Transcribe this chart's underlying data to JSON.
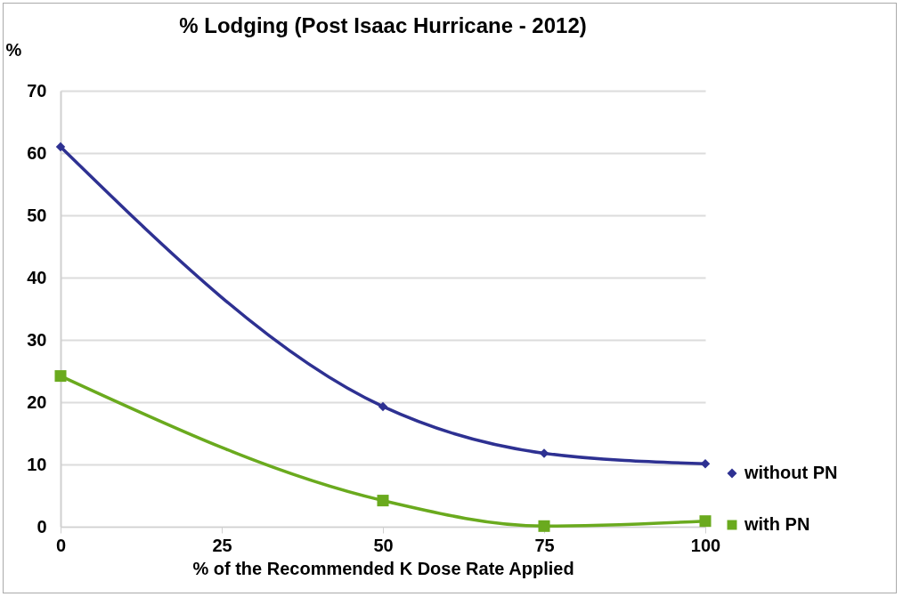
{
  "chart_data": {
    "type": "line",
    "title": "% Lodging (Post Isaac Hurricane - 2012)",
    "xlabel": "% of the Recommended K Dose Rate Applied",
    "ylabel": "%",
    "x": [
      0,
      50,
      75,
      100
    ],
    "series": [
      {
        "name": "without PN",
        "color": "#2e3192",
        "marker": "diamond",
        "values": [
          61,
          19.3,
          11.8,
          10.1
        ]
      },
      {
        "name": "with PN",
        "color": "#6aaa1e",
        "marker": "square",
        "values": [
          24.2,
          4.2,
          0.1,
          0.9
        ]
      }
    ],
    "xlim": [
      0,
      100
    ],
    "xticks": [
      0,
      25,
      50,
      75,
      100
    ],
    "ylim": [
      0,
      70
    ],
    "yticks": [
      0,
      10,
      20,
      30,
      40,
      50,
      60,
      70
    ],
    "grid": "y",
    "legend": "right"
  }
}
